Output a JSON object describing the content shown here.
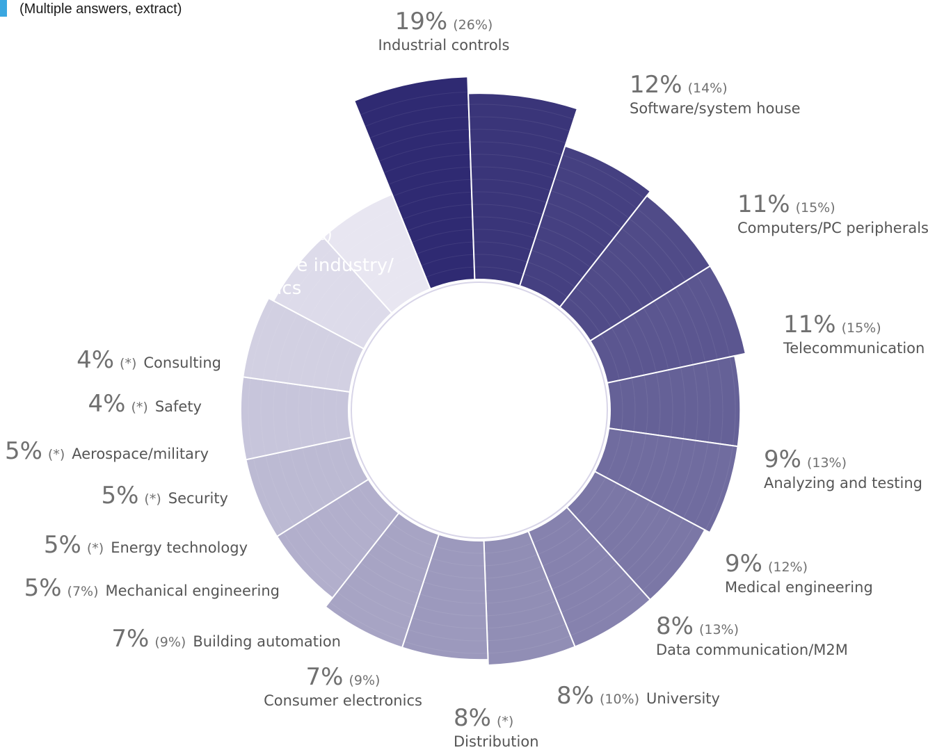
{
  "subtitle": "(Multiple answers, extract)",
  "chart_data": {
    "type": "pie",
    "subtype": "radial-bar",
    "title": "",
    "legend": "none",
    "color_dark": "#2f2a72",
    "color_light": "#e8e6f1",
    "slices": [
      {
        "label": "Automotive industry/ electronics",
        "value": 22,
        "previous": "(25%)"
      },
      {
        "label": "Industrial controls",
        "value": 19,
        "previous": "(26%)"
      },
      {
        "label": "Software/system house",
        "value": 12,
        "previous": "(14%)"
      },
      {
        "label": "Computers/PC peripherals",
        "value": 11,
        "previous": "(15%)"
      },
      {
        "label": "Telecommunication",
        "value": 11,
        "previous": "(15%)"
      },
      {
        "label": "Analyzing and testing",
        "value": 9,
        "previous": "(13%)"
      },
      {
        "label": "Medical engineering",
        "value": 9,
        "previous": "(12%)"
      },
      {
        "label": "Data communication/M2M",
        "value": 8,
        "previous": "(13%)"
      },
      {
        "label": "University",
        "value": 8,
        "previous": "(10%)"
      },
      {
        "label": "Distribution",
        "value": 8,
        "previous": "(*)"
      },
      {
        "label": "Consumer electronics",
        "value": 7,
        "previous": "(9%)"
      },
      {
        "label": "Building automation",
        "value": 7,
        "previous": "(9%)"
      },
      {
        "label": "Mechanical engineering",
        "value": 5,
        "previous": "(7%)"
      },
      {
        "label": "Energy technology",
        "value": 5,
        "previous": "(*)"
      },
      {
        "label": "Security",
        "value": 5,
        "previous": "(*)"
      },
      {
        "label": "Aerospace/military",
        "value": 5,
        "previous": "(*)"
      },
      {
        "label": "Safety",
        "value": 4,
        "previous": "(*)"
      },
      {
        "label": "Consulting",
        "value": 4,
        "previous": "(*)"
      }
    ]
  }
}
